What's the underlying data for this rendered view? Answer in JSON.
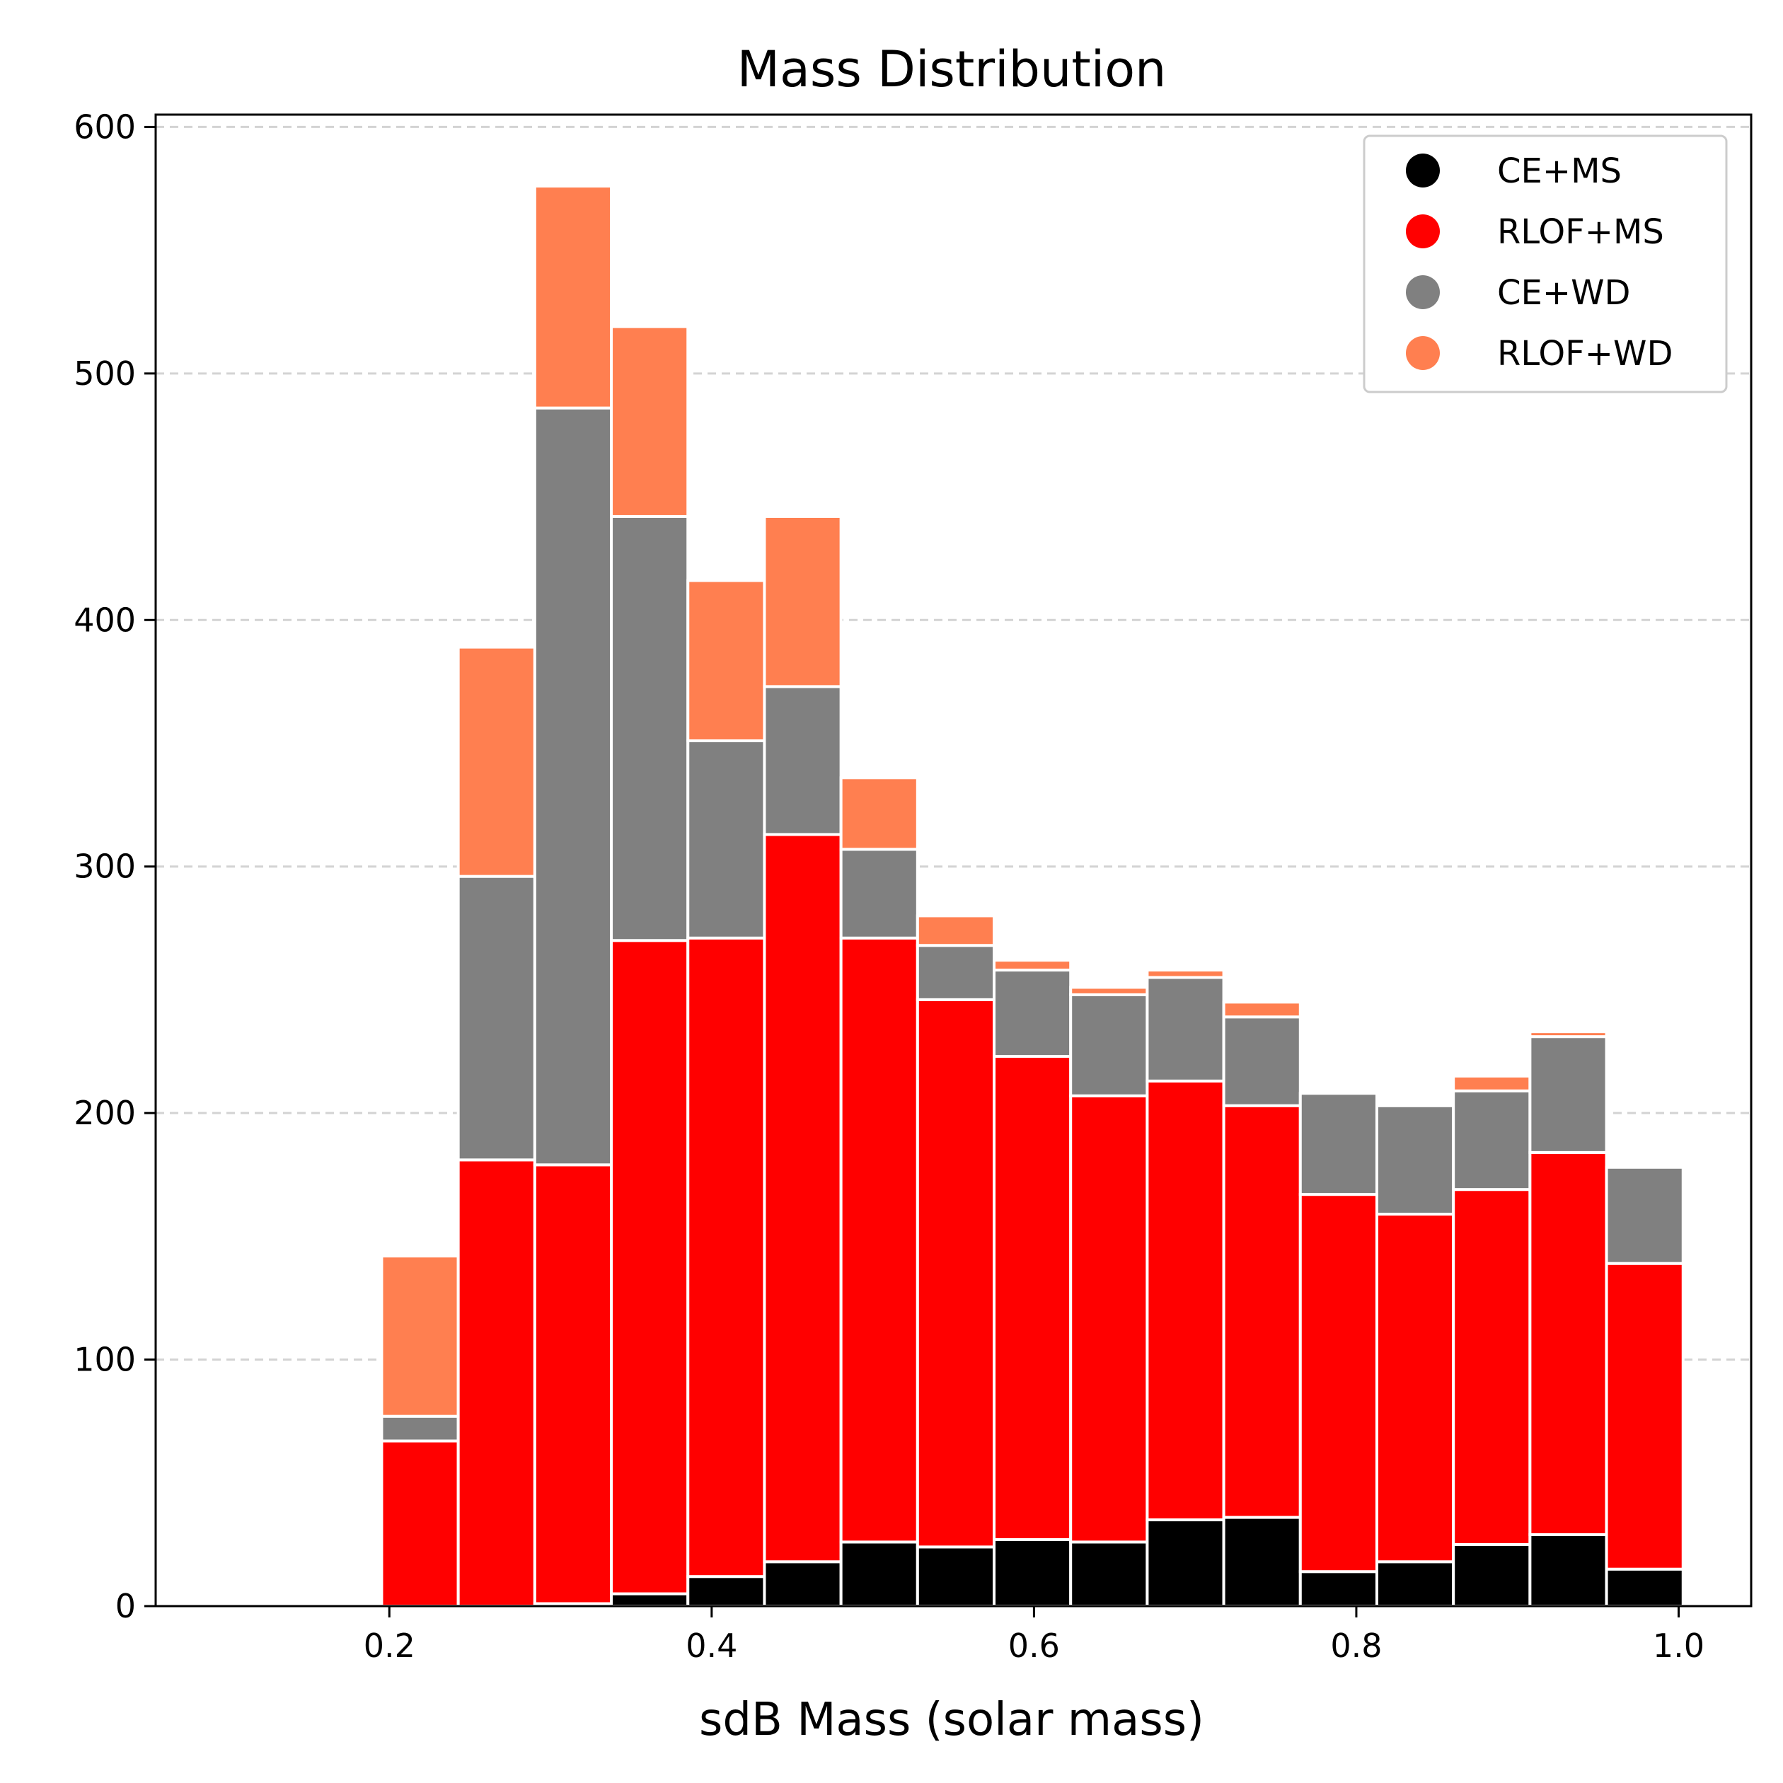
{
  "chart_data": {
    "type": "bar",
    "stacked": true,
    "title": "Mass Distribution",
    "xlabel": "sdB Mass (solar mass)",
    "ylabel": "",
    "xlim": [
      0.055,
      1.045
    ],
    "ylim": [
      0,
      605
    ],
    "xticks": [
      0.2,
      0.4,
      0.6,
      0.8,
      1.0
    ],
    "xtick_labels": [
      "0.2",
      "0.4",
      "0.6",
      "0.8",
      "1.0"
    ],
    "yticks": [
      0,
      100,
      200,
      300,
      400,
      500,
      600
    ],
    "ytick_labels": [
      "0",
      "100",
      "200",
      "300",
      "400",
      "500",
      "600"
    ],
    "grid": "y-dashed",
    "legend_position": "top-right",
    "bin_width": 0.0475,
    "bin_centers": [
      0.219,
      0.2665,
      0.314,
      0.3615,
      0.409,
      0.4565,
      0.504,
      0.5515,
      0.599,
      0.6465,
      0.694,
      0.7415,
      0.789,
      0.8365,
      0.884,
      0.9315,
      0.979
    ],
    "series": [
      {
        "name": "CE+MS",
        "color": "#000000",
        "values": [
          0,
          0,
          1,
          5,
          12,
          18,
          26,
          24,
          27,
          26,
          35,
          36,
          14,
          18,
          25,
          29,
          15
        ]
      },
      {
        "name": "RLOF+MS",
        "color": "#ff0000",
        "values": [
          67,
          181,
          178,
          265,
          259,
          295,
          245,
          222,
          196,
          181,
          178,
          167,
          153,
          141,
          144,
          155,
          124
        ]
      },
      {
        "name": "CE+WD",
        "color": "#808080",
        "values": [
          10,
          115,
          307,
          172,
          80,
          60,
          36,
          22,
          35,
          41,
          42,
          36,
          41,
          44,
          40,
          47,
          39
        ]
      },
      {
        "name": "RLOF+WD",
        "color": "#ff7f50",
        "values": [
          65,
          93,
          90,
          77,
          65,
          69,
          29,
          12,
          4,
          3,
          3,
          6,
          0,
          1,
          6,
          2,
          0
        ]
      }
    ]
  }
}
